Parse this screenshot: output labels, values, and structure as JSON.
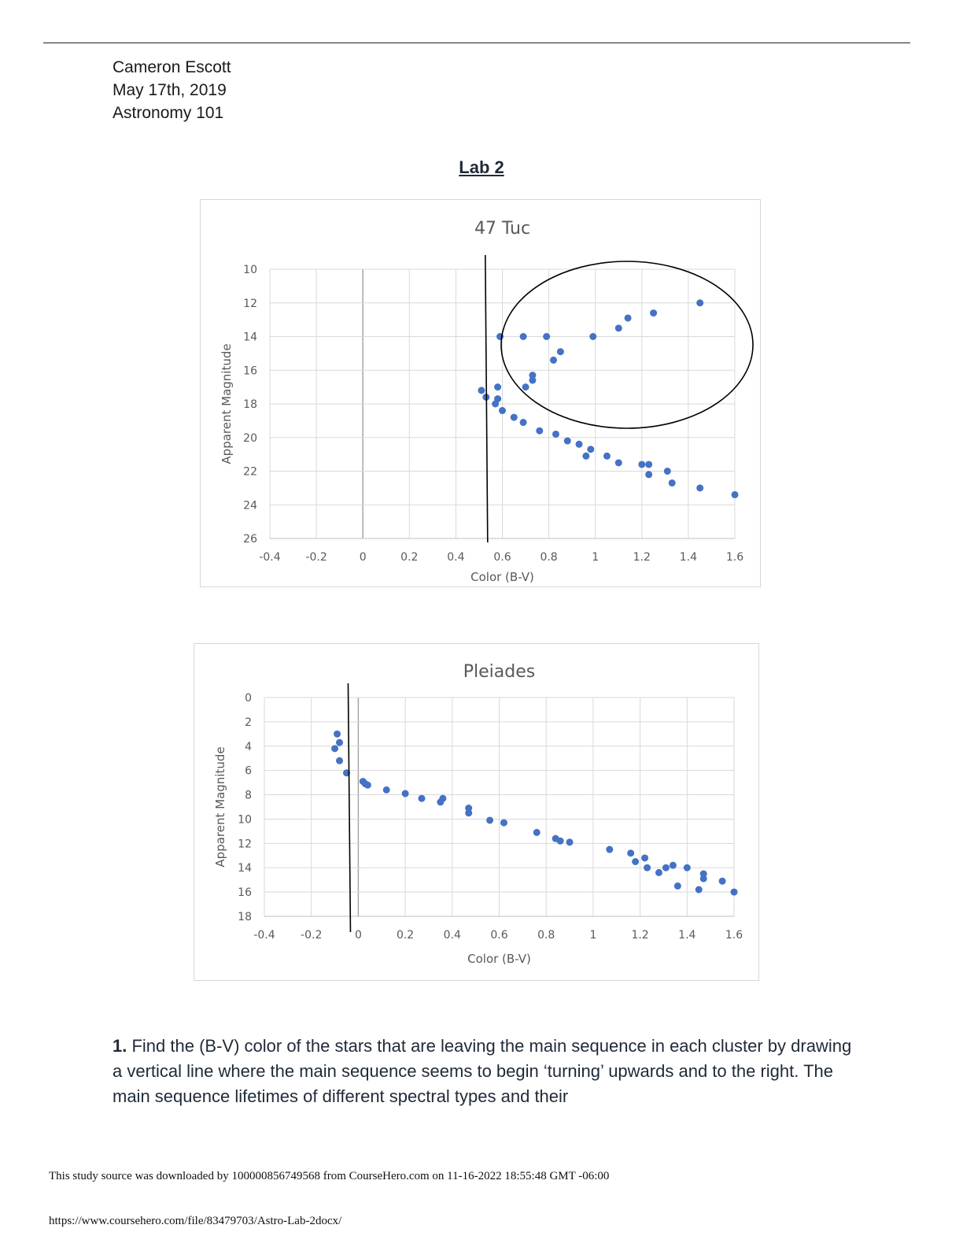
{
  "header": {
    "author": "Cameron Escott",
    "date": "May 17th, 2019",
    "course": "Astronomy 101"
  },
  "doc_title": "Lab 2",
  "question": {
    "number": "1.",
    "text": "Find the (B-V) color of the stars that are leaving the main sequence in each cluster by drawing a vertical line where the main sequence seems to begin ‘turning’ upwards and to the right. The main sequence lifetimes of different spectral types and their"
  },
  "footer": {
    "source_note": "This study source was downloaded by 100000856749568 from CourseHero.com on 11-16-2022 18:55:48 GMT -06:00",
    "url": "https://www.coursehero.com/file/83479703/Astro-Lab-2docx/"
  },
  "colors": {
    "marker": "#4472c4",
    "grid": "#d9d9d9",
    "axis_text": "#595959",
    "title_text": "#595959"
  },
  "chart_data": [
    {
      "type": "scatter",
      "title": "47 Tuc",
      "xlabel": "Color (B-V)",
      "ylabel": "Apparent Magnitude",
      "xlim": [
        -0.4,
        1.6
      ],
      "ylim": [
        10,
        26
      ],
      "y_inverted": true,
      "grid": true,
      "xticks": [
        "-0.4",
        "-0.2",
        "0",
        "0.2",
        "0.4",
        "0.6",
        "0.8",
        "1",
        "1.2",
        "1.4",
        "1.6"
      ],
      "yticks": [
        "10",
        "12",
        "14",
        "16",
        "18",
        "20",
        "22",
        "24",
        "26"
      ],
      "turnoff_line_x": 0.53,
      "annotation": "hand-drawn ellipse around the giant branch",
      "points": [
        [
          1.45,
          12.0
        ],
        [
          1.25,
          12.6
        ],
        [
          1.14,
          12.9
        ],
        [
          1.1,
          13.5
        ],
        [
          0.99,
          14.0
        ],
        [
          0.79,
          14.0
        ],
        [
          0.69,
          14.0
        ],
        [
          0.59,
          14.0
        ],
        [
          0.85,
          14.9
        ],
        [
          0.82,
          15.4
        ],
        [
          0.73,
          16.3
        ],
        [
          0.73,
          16.6
        ],
        [
          0.7,
          17.0
        ],
        [
          0.58,
          17.0
        ],
        [
          0.51,
          17.2
        ],
        [
          0.53,
          17.6
        ],
        [
          0.58,
          17.7
        ],
        [
          0.57,
          18.0
        ],
        [
          0.6,
          18.4
        ],
        [
          0.65,
          18.8
        ],
        [
          0.69,
          19.1
        ],
        [
          0.76,
          19.6
        ],
        [
          0.83,
          19.8
        ],
        [
          0.88,
          20.2
        ],
        [
          0.93,
          20.4
        ],
        [
          0.98,
          20.7
        ],
        [
          0.96,
          21.1
        ],
        [
          1.05,
          21.1
        ],
        [
          1.1,
          21.5
        ],
        [
          1.2,
          21.6
        ],
        [
          1.23,
          21.6
        ],
        [
          1.31,
          22.0
        ],
        [
          1.23,
          22.2
        ],
        [
          1.33,
          22.7
        ],
        [
          1.45,
          23.0
        ],
        [
          1.6,
          23.4
        ]
      ]
    },
    {
      "type": "scatter",
      "title": "Pleiades",
      "xlabel": "Color (B-V)",
      "ylabel": "Apparent Magnitude",
      "xlim": [
        -0.4,
        1.6
      ],
      "ylim": [
        0,
        18
      ],
      "y_inverted": true,
      "grid": true,
      "xticks": [
        "-0.4",
        "-0.2",
        "0",
        "0.2",
        "0.4",
        "0.6",
        "0.8",
        "1",
        "1.2",
        "1.4",
        "1.6"
      ],
      "yticks": [
        "0",
        "2",
        "4",
        "6",
        "8",
        "10",
        "12",
        "14",
        "16",
        "18"
      ],
      "turnoff_line_x": -0.04,
      "points": [
        [
          -0.09,
          3.0
        ],
        [
          -0.08,
          3.7
        ],
        [
          -0.1,
          4.2
        ],
        [
          -0.08,
          5.2
        ],
        [
          -0.05,
          6.2
        ],
        [
          0.02,
          6.9
        ],
        [
          0.03,
          7.1
        ],
        [
          0.04,
          7.2
        ],
        [
          0.12,
          7.6
        ],
        [
          0.2,
          7.9
        ],
        [
          0.27,
          8.3
        ],
        [
          0.35,
          8.6
        ],
        [
          0.36,
          8.3
        ],
        [
          0.47,
          9.1
        ],
        [
          0.47,
          9.5
        ],
        [
          0.56,
          10.1
        ],
        [
          0.62,
          10.3
        ],
        [
          0.76,
          11.1
        ],
        [
          0.84,
          11.6
        ],
        [
          0.86,
          11.8
        ],
        [
          0.9,
          11.9
        ],
        [
          1.07,
          12.5
        ],
        [
          1.16,
          12.8
        ],
        [
          1.18,
          13.5
        ],
        [
          1.22,
          13.2
        ],
        [
          1.23,
          14.0
        ],
        [
          1.28,
          14.4
        ],
        [
          1.31,
          14.0
        ],
        [
          1.34,
          13.8
        ],
        [
          1.36,
          15.5
        ],
        [
          1.4,
          14.0
        ],
        [
          1.45,
          15.8
        ],
        [
          1.47,
          14.5
        ],
        [
          1.47,
          14.9
        ],
        [
          1.55,
          15.1
        ],
        [
          1.6,
          16.0
        ]
      ]
    }
  ]
}
